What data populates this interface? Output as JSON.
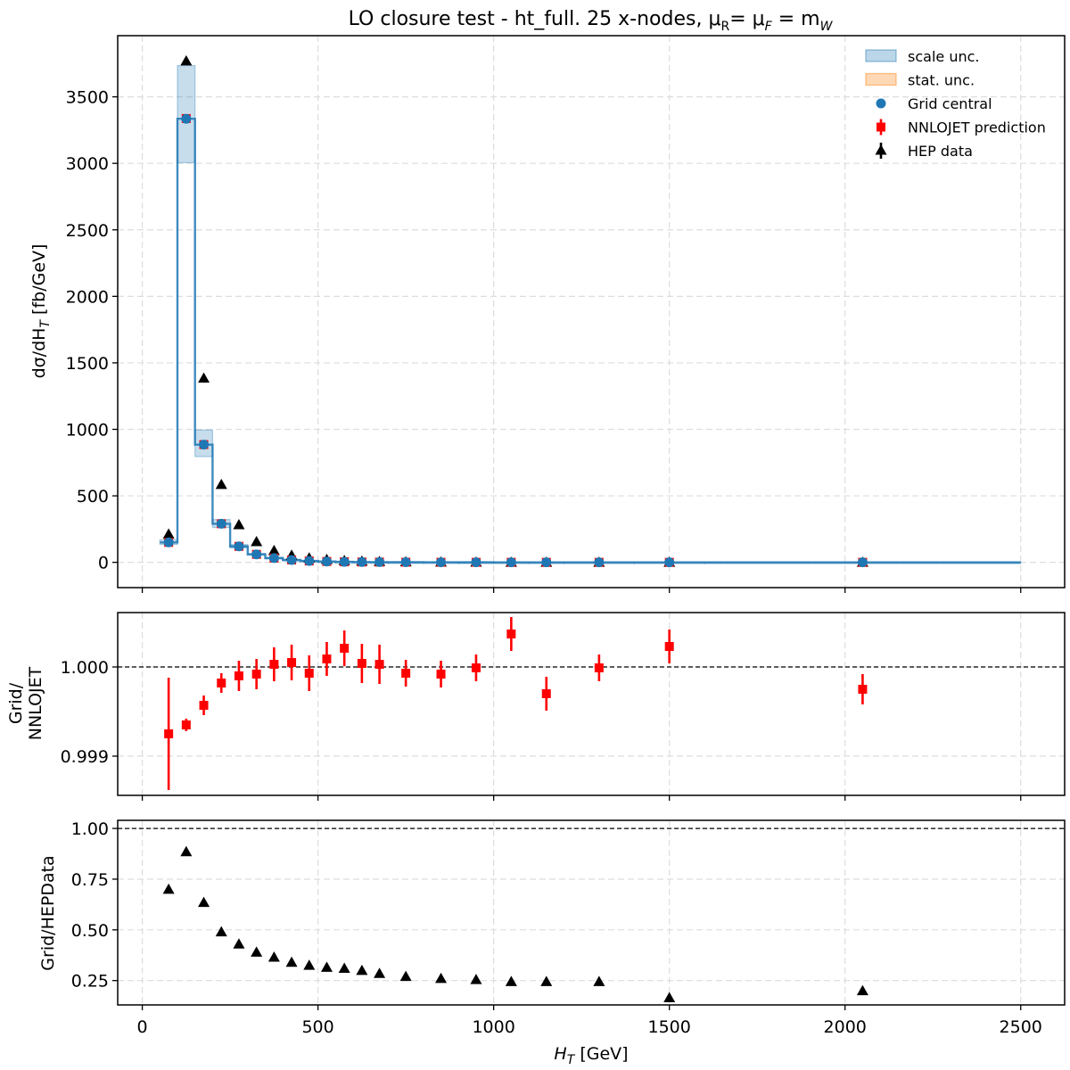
{
  "chart_data": {
    "type": "scatter",
    "title": "LO closure test  -  ht_full. 25 x-nodes, μR= μF = mW",
    "title_parts": {
      "main": "LO closure test  -  ht_full. 25 x-nodes, μ",
      "r_sub": "R",
      "mid": "= μ",
      "f_sub": "F",
      "eq": " = m",
      "w_sub": "W"
    },
    "xlabel": "H",
    "xlabel_sub": "T",
    "xlabel_unit": " [GeV]",
    "xlim": [
      -70,
      2625
    ],
    "xticks": [
      0,
      500,
      1000,
      1500,
      2000,
      2500
    ],
    "grid": true,
    "legend_position": "top-right",
    "legend": [
      {
        "label": "scale unc.",
        "kind": "patch",
        "color": "#1f77b4"
      },
      {
        "label": "stat. unc.",
        "kind": "patch",
        "color": "#ff7f0e"
      },
      {
        "label": "Grid central",
        "kind": "circle",
        "color": "#1f77b4"
      },
      {
        "label": "NNLOJET prediction",
        "kind": "square",
        "color": "#ff0000"
      },
      {
        "label": "HEP data",
        "kind": "triangle",
        "color": "#000000"
      }
    ],
    "colors": {
      "grid_central": "#1f77b4",
      "nnlojet": "#ff0000",
      "hep": "#000000",
      "scale_band": "#1f77b4",
      "stat_band": "#ff7f0e"
    },
    "bins": [
      {
        "lo": 50,
        "hi": 100,
        "x": 75,
        "grid": 150,
        "scale_lo": 135,
        "scale_hi": 170,
        "nnlojet": 150.1,
        "hep": 212,
        "ratio_nnlojet": 0.99925,
        "ratio_nnlojet_err": 0.00063,
        "ratio_hep": 0.7
      },
      {
        "lo": 100,
        "hi": 150,
        "x": 125,
        "grid": 3335,
        "scale_lo": 3005,
        "scale_hi": 3735,
        "nnlojet": 3337,
        "hep": 3770,
        "ratio_nnlojet": 0.99935,
        "ratio_nnlojet_err": 7e-05,
        "ratio_hep": 0.885
      },
      {
        "lo": 150,
        "hi": 200,
        "x": 175,
        "grid": 885,
        "scale_lo": 795,
        "scale_hi": 995,
        "nnlojet": 885.4,
        "hep": 1385,
        "ratio_nnlojet": 0.99957,
        "ratio_nnlojet_err": 0.00011,
        "ratio_hep": 0.635
      },
      {
        "lo": 200,
        "hi": 250,
        "x": 225,
        "grid": 290,
        "scale_lo": 262,
        "scale_hi": 322,
        "nnlojet": 290.1,
        "hep": 585,
        "ratio_nnlojet": 0.99982,
        "ratio_nnlojet_err": 0.00011,
        "ratio_hep": 0.49
      },
      {
        "lo": 250,
        "hi": 300,
        "x": 275,
        "grid": 120,
        "scale_lo": 108,
        "scale_hi": 134,
        "nnlojet": 120.0,
        "hep": 283,
        "ratio_nnlojet": 0.9999,
        "ratio_nnlojet_err": 0.00017,
        "ratio_hep": 0.43
      },
      {
        "lo": 300,
        "hi": 350,
        "x": 325,
        "grid": 60,
        "scale_lo": 54,
        "scale_hi": 67,
        "nnlojet": 60.0,
        "hep": 155,
        "ratio_nnlojet": 0.99992,
        "ratio_nnlojet_err": 0.00017,
        "ratio_hep": 0.39
      },
      {
        "lo": 350,
        "hi": 400,
        "x": 375,
        "grid": 32,
        "scale_lo": 29,
        "scale_hi": 36,
        "nnlojet": 32.0,
        "hep": 88,
        "ratio_nnlojet": 1.00003,
        "ratio_nnlojet_err": 0.00019,
        "ratio_hep": 0.365
      },
      {
        "lo": 400,
        "hi": 450,
        "x": 425,
        "grid": 18,
        "scale_lo": 16,
        "scale_hi": 20,
        "nnlojet": 18.0,
        "hep": 53,
        "ratio_nnlojet": 1.00005,
        "ratio_nnlojet_err": 0.0002,
        "ratio_hep": 0.34
      },
      {
        "lo": 450,
        "hi": 500,
        "x": 475,
        "grid": 10.5,
        "scale_lo": 9.4,
        "scale_hi": 11.8,
        "nnlojet": 10.5,
        "hep": 33,
        "ratio_nnlojet": 0.99993,
        "ratio_nnlojet_err": 0.0002,
        "ratio_hep": 0.325
      },
      {
        "lo": 500,
        "hi": 550,
        "x": 525,
        "grid": 6.5,
        "scale_lo": 5.8,
        "scale_hi": 7.3,
        "nnlojet": 6.5,
        "hep": 21,
        "ratio_nnlojet": 1.00009,
        "ratio_nnlojet_err": 0.00019,
        "ratio_hep": 0.315
      },
      {
        "lo": 550,
        "hi": 600,
        "x": 575,
        "grid": 4.0,
        "scale_lo": 3.6,
        "scale_hi": 4.5,
        "nnlojet": 4.0,
        "hep": 13,
        "ratio_nnlojet": 1.00021,
        "ratio_nnlojet_err": 0.0002,
        "ratio_hep": 0.31
      },
      {
        "lo": 600,
        "hi": 650,
        "x": 625,
        "grid": 2.6,
        "scale_lo": 2.3,
        "scale_hi": 2.9,
        "nnlojet": 2.6,
        "hep": 8.6,
        "ratio_nnlojet": 1.00004,
        "ratio_nnlojet_err": 0.00022,
        "ratio_hep": 0.3
      },
      {
        "lo": 650,
        "hi": 700,
        "x": 675,
        "grid": 1.7,
        "scale_lo": 1.5,
        "scale_hi": 1.9,
        "nnlojet": 1.7,
        "hep": 6.0,
        "ratio_nnlojet": 1.00003,
        "ratio_nnlojet_err": 0.00022,
        "ratio_hep": 0.285
      },
      {
        "lo": 700,
        "hi": 800,
        "x": 750,
        "grid": 1.0,
        "scale_lo": 0.9,
        "scale_hi": 1.1,
        "nnlojet": 1.0,
        "hep": 3.7,
        "ratio_nnlojet": 0.99993,
        "ratio_nnlojet_err": 0.00015,
        "ratio_hep": 0.27
      },
      {
        "lo": 800,
        "hi": 900,
        "x": 850,
        "grid": 0.5,
        "scale_lo": 0.45,
        "scale_hi": 0.56,
        "nnlojet": 0.5,
        "hep": 1.9,
        "ratio_nnlojet": 0.99992,
        "ratio_nnlojet_err": 0.00015,
        "ratio_hep": 0.26
      },
      {
        "lo": 900,
        "hi": 1000,
        "x": 950,
        "grid": 0.26,
        "scale_lo": 0.23,
        "scale_hi": 0.29,
        "nnlojet": 0.26,
        "hep": 1.0,
        "ratio_nnlojet": 0.99999,
        "ratio_nnlojet_err": 0.00015,
        "ratio_hep": 0.255
      },
      {
        "lo": 1000,
        "hi": 1100,
        "x": 1050,
        "grid": 0.14,
        "scale_lo": 0.12,
        "scale_hi": 0.16,
        "nnlojet": 0.14,
        "hep": 0.57,
        "ratio_nnlojet": 1.00037,
        "ratio_nnlojet_err": 0.00019,
        "ratio_hep": 0.245
      },
      {
        "lo": 1100,
        "hi": 1200,
        "x": 1150,
        "grid": 0.08,
        "scale_lo": 0.07,
        "scale_hi": 0.09,
        "nnlojet": 0.08,
        "hep": 0.33,
        "ratio_nnlojet": 0.9997,
        "ratio_nnlojet_err": 0.00019,
        "ratio_hep": 0.245
      },
      {
        "lo": 1200,
        "hi": 1400,
        "x": 1300,
        "grid": 0.04,
        "scale_lo": 0.035,
        "scale_hi": 0.045,
        "nnlojet": 0.04,
        "hep": 0.16,
        "ratio_nnlojet": 0.99999,
        "ratio_nnlojet_err": 0.00015,
        "ratio_hep": 0.245
      },
      {
        "lo": 1400,
        "hi": 1600,
        "x": 1500,
        "grid": 0.015,
        "scale_lo": 0.013,
        "scale_hi": 0.017,
        "nnlojet": 0.015,
        "hep": 0.09,
        "ratio_nnlojet": 1.00023,
        "ratio_nnlojet_err": 0.00019,
        "ratio_hep": 0.165
      },
      {
        "lo": 1600,
        "hi": 2500,
        "x": 2050,
        "grid": 0.002,
        "scale_lo": 0.0018,
        "scale_hi": 0.0023,
        "nnlojet": 0.002,
        "hep": 0.01,
        "ratio_nnlojet": 0.99975,
        "ratio_nnlojet_err": 0.00017,
        "ratio_hep": 0.2
      }
    ],
    "panels": [
      {
        "id": "main",
        "ylabel": "dσ/dH",
        "ylabel_sub": "T",
        "ylabel_unit": "  [fb/GeV]",
        "ylim": [
          -190,
          3960
        ],
        "yticks": [
          0,
          500,
          1000,
          1500,
          2000,
          2500,
          3000,
          3500
        ],
        "ytick_labels": [
          "0",
          "500",
          "1000",
          "1500",
          "2000",
          "2500",
          "3000",
          "3500"
        ]
      },
      {
        "id": "ratio_nnlojet",
        "ylabel_lines": [
          "Grid/",
          "NNLOJET"
        ],
        "ylim": [
          0.99856,
          1.00061
        ],
        "yticks": [
          0.999,
          1.0
        ],
        "ytick_labels": [
          "0.999",
          "1.000"
        ],
        "ref_line": 1.0
      },
      {
        "id": "ratio_hep",
        "ylabel": "Grid/HEPData",
        "ylim": [
          0.13,
          1.04
        ],
        "yticks": [
          0.25,
          0.5,
          0.75,
          1.0
        ],
        "ytick_labels": [
          "0.25",
          "0.50",
          "0.75",
          "1.00"
        ],
        "ref_line": 1.0
      }
    ],
    "xtick_labels": [
      "0",
      "500",
      "1000",
      "1500",
      "2000",
      "2500"
    ]
  }
}
